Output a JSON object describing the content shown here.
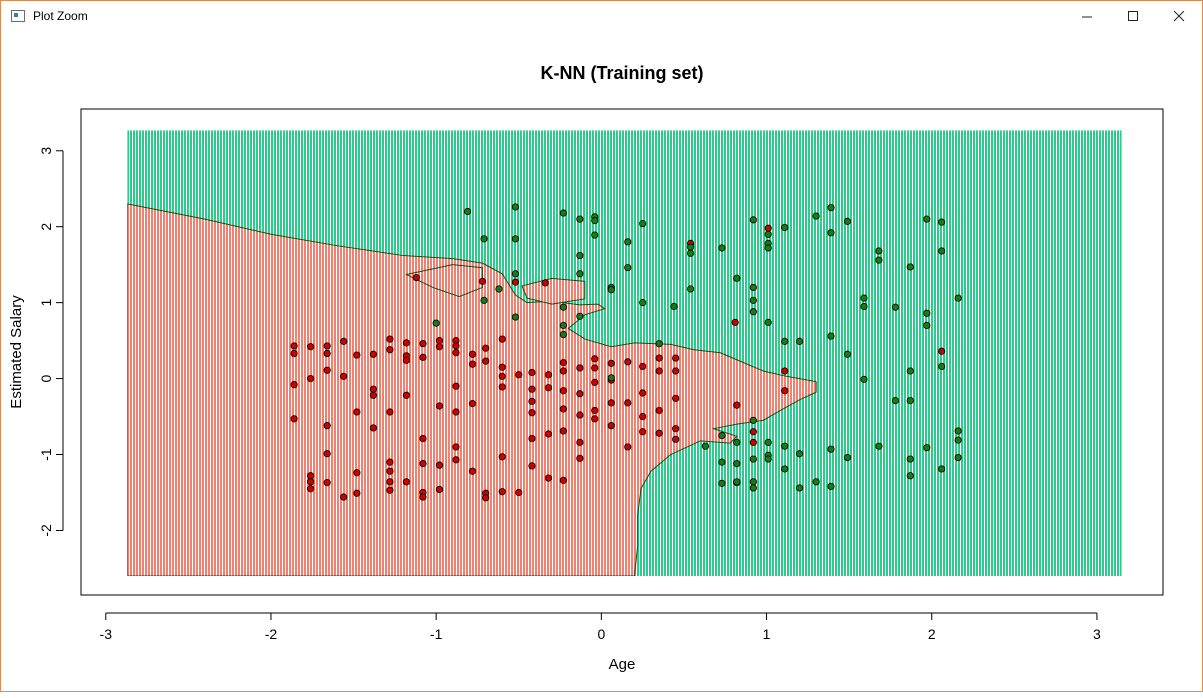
{
  "window": {
    "title": "Plot Zoom",
    "controls": {
      "minimize": "minimize-icon",
      "maximize": "maximize-icon",
      "close": "close-icon"
    }
  },
  "chart_data": {
    "type": "scatter",
    "title": "K-NN (Training set)",
    "xlabel": "Age",
    "ylabel": "Estimated Salary",
    "xlim": [
      -3.15,
      3.4
    ],
    "ylim": [
      -2.85,
      3.55
    ],
    "x_ticks": [
      "-3",
      "-2",
      "-1",
      "0",
      "1",
      "2",
      "3"
    ],
    "y_ticks": [
      "-2",
      "-1",
      "0",
      "1",
      "2",
      "3"
    ],
    "grid": false,
    "legend": "none",
    "background_region": {
      "x_range": [
        -2.87,
        3.15
      ],
      "y_range": [
        -2.6,
        3.27
      ],
      "class0_color": "#f08070",
      "class1_color": "#2ecc8a"
    },
    "series": [
      {
        "class": 0,
        "color": "#cc0000",
        "points": [
          [
            -1.86,
            0.43
          ],
          [
            -1.86,
            0.33
          ],
          [
            -1.86,
            -0.08
          ],
          [
            -1.86,
            -0.53
          ],
          [
            -1.76,
            0.42
          ],
          [
            -1.76,
            -1.28
          ],
          [
            -1.76,
            -1.36
          ],
          [
            -1.76,
            -1.45
          ],
          [
            -1.76,
            0.0
          ],
          [
            -1.66,
            0.43
          ],
          [
            -1.66,
            0.33
          ],
          [
            -1.66,
            0.11
          ],
          [
            -1.66,
            -0.62
          ],
          [
            -1.66,
            -0.99
          ],
          [
            -1.66,
            -1.37
          ],
          [
            -1.56,
            0.49
          ],
          [
            -1.56,
            0.03
          ],
          [
            -1.56,
            -1.56
          ],
          [
            -1.48,
            0.31
          ],
          [
            -1.48,
            -0.44
          ],
          [
            -1.48,
            -1.24
          ],
          [
            -1.48,
            -1.51
          ],
          [
            -1.38,
            0.32
          ],
          [
            -1.38,
            -0.14
          ],
          [
            -1.38,
            -0.22
          ],
          [
            -1.38,
            -0.65
          ],
          [
            -1.28,
            0.52
          ],
          [
            -1.28,
            0.38
          ],
          [
            -1.28,
            -0.44
          ],
          [
            -1.28,
            -1.1
          ],
          [
            -1.28,
            -1.22
          ],
          [
            -1.28,
            -1.36
          ],
          [
            -1.28,
            -1.47
          ],
          [
            -1.18,
            0.47
          ],
          [
            -1.18,
            0.3
          ],
          [
            -1.18,
            0.24
          ],
          [
            -1.18,
            -0.22
          ],
          [
            -1.18,
            -1.36
          ],
          [
            -1.08,
            0.46
          ],
          [
            -1.08,
            0.28
          ],
          [
            -1.08,
            -0.79
          ],
          [
            -1.08,
            -1.12
          ],
          [
            -1.08,
            -1.5
          ],
          [
            -1.08,
            -1.56
          ],
          [
            -0.98,
            0.5
          ],
          [
            -0.98,
            0.42
          ],
          [
            -0.98,
            -0.36
          ],
          [
            -0.98,
            -1.14
          ],
          [
            -0.98,
            -1.46
          ],
          [
            -0.88,
            0.5
          ],
          [
            -0.88,
            0.43
          ],
          [
            -0.88,
            0.34
          ],
          [
            -0.88,
            -0.1
          ],
          [
            -0.88,
            -0.44
          ],
          [
            -0.88,
            -0.9
          ],
          [
            -0.88,
            -1.07
          ],
          [
            -0.78,
            0.32
          ],
          [
            -0.78,
            0.19
          ],
          [
            -0.78,
            -0.33
          ],
          [
            -0.78,
            -1.22
          ],
          [
            -0.7,
            0.4
          ],
          [
            -0.7,
            0.23
          ],
          [
            -0.7,
            -1.51
          ],
          [
            -0.7,
            -1.57
          ],
          [
            -0.6,
            0.52
          ],
          [
            -0.6,
            0.15
          ],
          [
            -0.6,
            0.03
          ],
          [
            -0.6,
            -0.11
          ],
          [
            -0.6,
            -1.03
          ],
          [
            -0.6,
            -1.49
          ],
          [
            -0.5,
            0.05
          ],
          [
            -0.5,
            -1.5
          ],
          [
            -0.42,
            0.08
          ],
          [
            -0.42,
            -0.14
          ],
          [
            -0.42,
            -0.3
          ],
          [
            -0.42,
            -0.45
          ],
          [
            -0.42,
            -0.79
          ],
          [
            -0.42,
            -1.15
          ],
          [
            -0.32,
            0.05
          ],
          [
            -0.32,
            -0.12
          ],
          [
            -0.32,
            -0.73
          ],
          [
            -0.32,
            -1.31
          ],
          [
            -0.23,
            0.21
          ],
          [
            -0.23,
            0.1
          ],
          [
            -0.23,
            -0.16
          ],
          [
            -0.23,
            -0.4
          ],
          [
            -0.23,
            -0.69
          ],
          [
            -0.23,
            -1.34
          ],
          [
            -0.13,
            0.14
          ],
          [
            -0.13,
            -0.2
          ],
          [
            -0.13,
            -0.48
          ],
          [
            -0.13,
            -0.84
          ],
          [
            -0.13,
            -1.05
          ],
          [
            -0.04,
            0.26
          ],
          [
            -0.04,
            0.14
          ],
          [
            -0.04,
            -0.05
          ],
          [
            -0.04,
            -0.42
          ],
          [
            -0.04,
            -0.53
          ],
          [
            0.06,
            0.2
          ],
          [
            0.06,
            -0.02
          ],
          [
            0.06,
            -0.32
          ],
          [
            0.06,
            -0.62
          ],
          [
            0.16,
            0.22
          ],
          [
            0.16,
            -0.32
          ],
          [
            0.16,
            -0.9
          ],
          [
            0.25,
            0.16
          ],
          [
            0.25,
            -0.19
          ],
          [
            0.25,
            -0.5
          ],
          [
            0.25,
            -0.7
          ],
          [
            0.35,
            0.27
          ],
          [
            0.35,
            0.1
          ],
          [
            0.35,
            -0.42
          ],
          [
            0.35,
            -0.72
          ],
          [
            0.45,
            0.1
          ],
          [
            0.45,
            0.27
          ],
          [
            0.45,
            -0.26
          ],
          [
            0.45,
            -0.66
          ],
          [
            0.45,
            -0.8
          ],
          [
            0.82,
            -0.35
          ],
          [
            0.82,
            -1.37
          ],
          [
            0.92,
            -0.7
          ],
          [
            0.92,
            -0.84
          ],
          [
            1.01,
            1.98
          ],
          [
            1.11,
            0.1
          ],
          [
            1.11,
            -0.16
          ],
          [
            2.06,
            0.36
          ],
          [
            0.54,
            1.78
          ],
          [
            -0.52,
            1.27
          ],
          [
            -0.34,
            1.26
          ],
          [
            -0.72,
            1.28
          ],
          [
            -1.12,
            1.33
          ],
          [
            0.81,
            0.74
          ]
        ]
      },
      {
        "class": 1,
        "color": "#1a7a1a",
        "points": [
          [
            -0.81,
            2.2
          ],
          [
            -0.71,
            1.84
          ],
          [
            -0.52,
            2.26
          ],
          [
            -0.52,
            1.84
          ],
          [
            -0.23,
            2.18
          ],
          [
            -0.13,
            2.1
          ],
          [
            -0.04,
            2.13
          ],
          [
            -0.04,
            2.08
          ],
          [
            -0.04,
            1.89
          ],
          [
            0.16,
            1.8
          ],
          [
            0.16,
            1.46
          ],
          [
            0.25,
            2.04
          ],
          [
            0.54,
            1.73
          ],
          [
            0.54,
            1.65
          ],
          [
            0.73,
            1.72
          ],
          [
            0.92,
            2.09
          ],
          [
            1.01,
            1.9
          ],
          [
            1.01,
            1.78
          ],
          [
            1.01,
            1.72
          ],
          [
            1.11,
            1.99
          ],
          [
            1.3,
            2.14
          ],
          [
            1.39,
            2.25
          ],
          [
            1.39,
            1.92
          ],
          [
            1.49,
            2.07
          ],
          [
            1.68,
            1.68
          ],
          [
            1.68,
            1.56
          ],
          [
            1.97,
            2.1
          ],
          [
            2.06,
            2.06
          ],
          [
            2.06,
            1.68
          ],
          [
            -0.13,
            1.62
          ],
          [
            -0.13,
            1.38
          ],
          [
            -0.52,
            1.38
          ],
          [
            -0.62,
            1.18
          ],
          [
            -0.71,
            1.03
          ],
          [
            -0.52,
            0.81
          ],
          [
            -0.23,
            0.7
          ],
          [
            -0.23,
            0.58
          ],
          [
            -1.0,
            0.73
          ],
          [
            -0.13,
            0.82
          ],
          [
            0.06,
            1.2
          ],
          [
            0.06,
            1.17
          ],
          [
            0.25,
            1.0
          ],
          [
            0.44,
            0.95
          ],
          [
            0.54,
            1.18
          ],
          [
            0.82,
            1.32
          ],
          [
            0.92,
            1.2
          ],
          [
            0.92,
            1.03
          ],
          [
            0.92,
            0.88
          ],
          [
            1.01,
            0.74
          ],
          [
            1.11,
            0.49
          ],
          [
            1.2,
            0.49
          ],
          [
            1.39,
            0.56
          ],
          [
            1.49,
            0.32
          ],
          [
            1.59,
            1.06
          ],
          [
            1.59,
            0.95
          ],
          [
            1.78,
            0.94
          ],
          [
            1.87,
            1.47
          ],
          [
            1.97,
            0.86
          ],
          [
            1.97,
            0.7
          ],
          [
            2.16,
            1.06
          ],
          [
            2.06,
            0.16
          ],
          [
            1.87,
            0.1
          ],
          [
            1.59,
            -0.01
          ],
          [
            1.78,
            -0.29
          ],
          [
            1.87,
            -0.29
          ],
          [
            2.16,
            -0.69
          ],
          [
            2.16,
            -0.81
          ],
          [
            2.16,
            -1.04
          ],
          [
            1.97,
            -0.91
          ],
          [
            1.87,
            -1.06
          ],
          [
            1.87,
            -1.28
          ],
          [
            2.06,
            -1.19
          ],
          [
            1.68,
            -0.89
          ],
          [
            1.49,
            -1.04
          ],
          [
            1.39,
            -0.93
          ],
          [
            1.39,
            -1.42
          ],
          [
            1.3,
            -1.36
          ],
          [
            1.2,
            -1.44
          ],
          [
            1.2,
            -0.99
          ],
          [
            1.11,
            -0.89
          ],
          [
            1.11,
            -1.19
          ],
          [
            1.01,
            -0.84
          ],
          [
            1.01,
            -1.01
          ],
          [
            1.01,
            -1.06
          ],
          [
            0.92,
            -0.55
          ],
          [
            0.92,
            -1.06
          ],
          [
            0.92,
            -1.36
          ],
          [
            0.92,
            -1.44
          ],
          [
            0.82,
            -0.84
          ],
          [
            0.82,
            -1.12
          ],
          [
            0.82,
            -1.36
          ],
          [
            0.73,
            -0.75
          ],
          [
            0.73,
            -1.1
          ],
          [
            0.73,
            -1.38
          ],
          [
            0.63,
            -0.89
          ],
          [
            0.35,
            0.46
          ],
          [
            0.06,
            0.01
          ],
          [
            -0.23,
            0.94
          ]
        ]
      }
    ]
  }
}
